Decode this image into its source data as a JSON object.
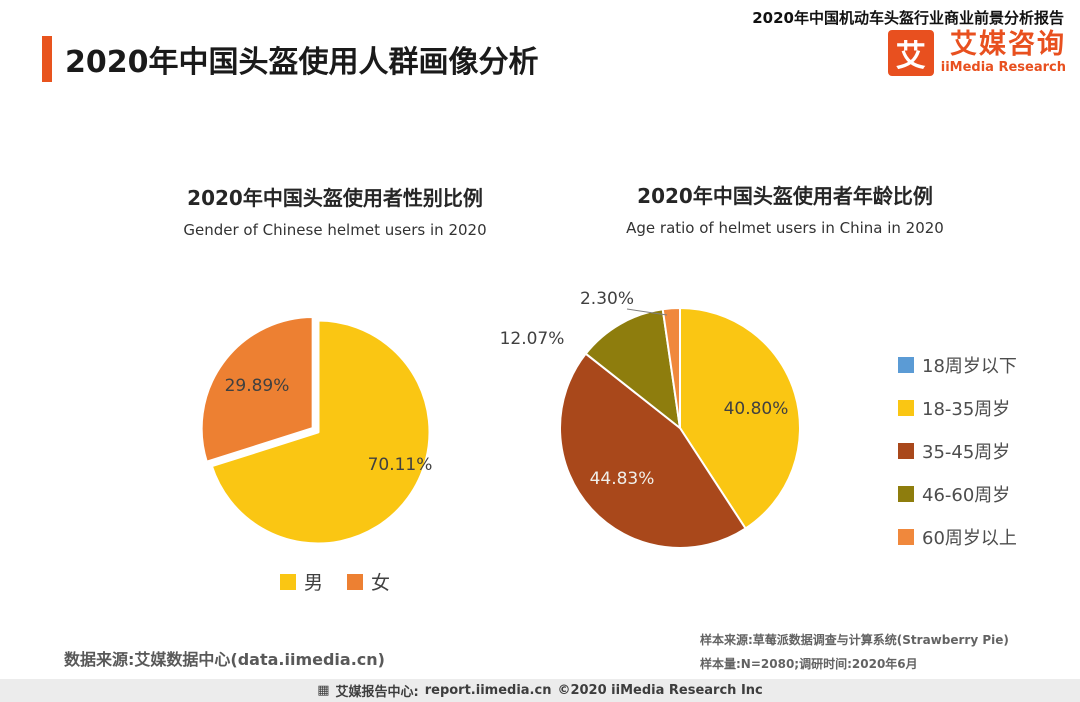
{
  "header": {
    "report_title": "2020年中国机动车头盔行业商业前景分析报告",
    "page_title": "2020年中国头盔使用人群画像分析",
    "logo": {
      "icon_char": "艾",
      "name_cn": "艾媒咨询",
      "name_en": "iiMedia Research"
    }
  },
  "chart_data": [
    {
      "type": "pie",
      "title": "2020年中国头盔使用者性别比例",
      "subtitle": "Gender of Chinese helmet users in 2020",
      "labels": [
        "男",
        "女"
      ],
      "values": [
        70.11,
        29.89
      ],
      "display_labels": [
        "70.11%",
        "29.89%"
      ],
      "colors": [
        "#FAC613",
        "#ED8032"
      ],
      "label_colors": [
        "#404040",
        "#404040"
      ],
      "legend_position": "bottom"
    },
    {
      "type": "pie",
      "title": "2020年中国头盔使用者年龄比例",
      "subtitle": "Age ratio of helmet users in China in 2020",
      "labels": [
        "18周岁以下",
        "18-35周岁",
        "35-45周岁",
        "46-60周岁",
        "60周岁以上"
      ],
      "values": [
        0.0,
        40.8,
        44.83,
        12.07,
        2.3
      ],
      "display_labels": [
        "",
        "40.80%",
        "44.83%",
        "12.07%",
        "2.30%"
      ],
      "colors": [
        "#5B9BD5",
        "#FAC613",
        "#A9481B",
        "#8E7D0D",
        "#F0883C"
      ],
      "label_colors": [
        "",
        "#404040",
        "#F0EFEA",
        "#404040",
        "#404040"
      ],
      "legend_position": "right"
    }
  ],
  "notes": {
    "data_source": "数据来源:艾媒数据中心(data.iimedia.cn)",
    "sample_source": "样本来源:草莓派数据调查与计算系统(Strawberry Pie)",
    "sample_info": "样本量:N=2080;调研时间:2020年6月"
  },
  "footer": {
    "report_center_label": "艾媒报告中心:",
    "report_center_url": "report.iimedia.cn",
    "copyright": "©2020  iiMedia Research Inc"
  }
}
